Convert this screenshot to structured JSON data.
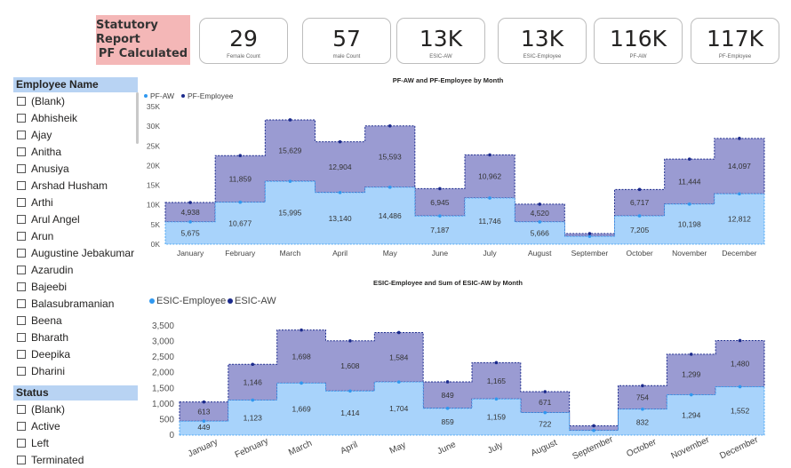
{
  "report": {
    "title_line1": "Statutory Report",
    "title_line2": "PF Calculated"
  },
  "cards": [
    {
      "value": "29",
      "label": "Female Count"
    },
    {
      "value": "57",
      "label": "male Count"
    },
    {
      "value": "13K",
      "label": "ESIC-AW"
    },
    {
      "value": "13K",
      "label": "ESIC-Employee"
    },
    {
      "value": "116K",
      "label": "PF-AW"
    },
    {
      "value": "117K",
      "label": "PF-Employee"
    }
  ],
  "employee_slicer": {
    "header": "Employee Name",
    "items": [
      "(Blank)",
      "Abhisheik",
      "Ajay",
      "Anitha",
      "Anusiya",
      "Arshad Husham",
      "Arthi",
      "Arul Angel",
      "Arun",
      "Augustine Jebakumar",
      "Azarudin",
      "Bajeebi",
      "Balasubramanian",
      "Beena",
      "Bharath",
      "Deepika",
      "Dharini"
    ]
  },
  "status_slicer": {
    "header": "Status",
    "items": [
      "(Blank)",
      "Active",
      "Left",
      "Terminated"
    ]
  },
  "chart_data": [
    {
      "type": "area",
      "title": "PF-AW and PF-Employee by Month",
      "categories": [
        "January",
        "February",
        "March",
        "April",
        "May",
        "June",
        "July",
        "August",
        "September",
        "October",
        "November",
        "December"
      ],
      "series": [
        {
          "name": "PF-AW",
          "values": [
            5675,
            10677,
            15995,
            13140,
            14486,
            7187,
            11746,
            5666,
            2000,
            7205,
            10198,
            12812
          ]
        },
        {
          "name": "PF-Employee",
          "values": [
            4938,
            11859,
            15629,
            12904,
            15593,
            6945,
            10962,
            4520,
            700,
            6717,
            11444,
            14097
          ]
        }
      ],
      "labels_aw": [
        "5,675",
        "10,677",
        "15,995",
        "13,140",
        "14,486",
        "7,187",
        "11,746",
        "5,666",
        "",
        "7,205",
        "10,198",
        "12,812"
      ],
      "labels_emp": [
        "4,938",
        "11,859",
        "15,629",
        "12,904",
        "15,593",
        "6,945",
        "10,962",
        "4,520",
        "",
        "6,717",
        "11,444",
        "14,097"
      ],
      "yticks": [
        "0K",
        "5K",
        "10K",
        "15K",
        "20K",
        "25K",
        "30K",
        "35K"
      ],
      "ylim": [
        0,
        35000
      ],
      "stacked": true,
      "legend": "top-left",
      "colors": {
        "bottom": "#a8d3fb",
        "top": "#9a9bd2",
        "bottom_dot": "#2f98f0",
        "top_dot": "#1b2a8c"
      }
    },
    {
      "type": "area",
      "title": "ESIC-Employee and Sum of ESIC-AW by Month",
      "categories": [
        "January",
        "February",
        "March",
        "April",
        "May",
        "June",
        "July",
        "August",
        "September",
        "October",
        "November",
        "December"
      ],
      "series": [
        {
          "name": "ESIC-Employee",
          "values": [
            449,
            1123,
            1669,
            1414,
            1704,
            859,
            1159,
            722,
            150,
            832,
            1294,
            1552
          ]
        },
        {
          "name": "ESIC-AW",
          "values": [
            613,
            1146,
            1698,
            1608,
            1584,
            849,
            1165,
            671,
            150,
            754,
            1299,
            1480
          ]
        }
      ],
      "labels_aw": [
        "449",
        "1,123",
        "1,669",
        "1,414",
        "1,704",
        "859",
        "1,159",
        "722",
        "",
        "832",
        "1,294",
        "1,552"
      ],
      "labels_emp": [
        "613",
        "1,146",
        "1,698",
        "1,608",
        "1,584",
        "849",
        "1,165",
        "671",
        "",
        "754",
        "1,299",
        "1,480"
      ],
      "yticks": [
        "0",
        "500",
        "1,000",
        "1,500",
        "2,000",
        "2,500",
        "3,000",
        "3,500"
      ],
      "ylim": [
        0,
        3500
      ],
      "stacked": true,
      "legend": "top-left",
      "colors": {
        "bottom": "#a8d3fb",
        "top": "#9a9bd2",
        "bottom_dot": "#2f98f0",
        "top_dot": "#1b2a8c"
      }
    }
  ]
}
